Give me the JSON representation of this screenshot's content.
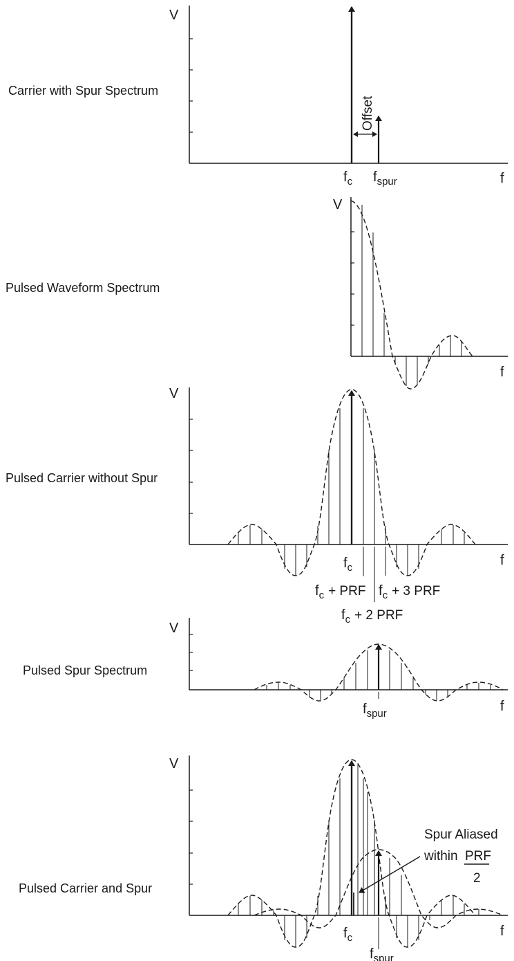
{
  "panels": [
    {
      "title": "Carrier with Spur Spectrum",
      "y_axis_label": "V",
      "x_axis_label": "f",
      "labels": {
        "carrier": "f",
        "carrier_sub": "c",
        "spur": "f",
        "spur_sub": "spur",
        "offset": "Offset"
      }
    },
    {
      "title": "Pulsed Waveform Spectrum",
      "y_axis_label": "V",
      "x_axis_label": "f"
    },
    {
      "title": "Pulsed Carrier without Spur",
      "y_axis_label": "V",
      "x_axis_label": "f",
      "labels": {
        "carrier": "f",
        "carrier_sub": "c",
        "plus_prf": "+ PRF",
        "plus_2prf": "+ 2 PRF",
        "plus_3prf": "+ 3 PRF"
      }
    },
    {
      "title": "Pulsed Spur Spectrum",
      "y_axis_label": "V",
      "x_axis_label": "f",
      "labels": {
        "spur": "f",
        "spur_sub": "spur"
      }
    },
    {
      "title": "Pulsed Carrier and Spur",
      "y_axis_label": "V",
      "x_axis_label": "f",
      "labels": {
        "carrier": "f",
        "carrier_sub": "c",
        "spur": "f",
        "spur_sub": "spur",
        "aliased_line1": "Spur Aliased",
        "aliased_line2": "within",
        "prf": "PRF",
        "two": "2"
      }
    }
  ],
  "colors": {
    "ink": "#1a1a1a",
    "background": "#ffffff"
  }
}
